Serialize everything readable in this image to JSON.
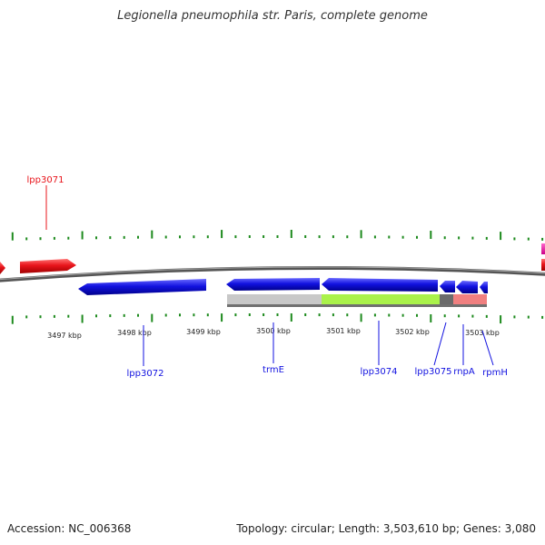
{
  "title": "Legionella pneumophila str. Paris, complete genome",
  "footer": {
    "accession": "Accession: NC_006368",
    "summary": "Topology: circular; Length: 3,503,610 bp; Genes: 3,080"
  },
  "colors": {
    "red_gene": "#e8141b",
    "blue_gene": "#1212e0",
    "tick": "#1d8a1d",
    "backbone": "#777777"
  },
  "kbp_labels": [
    "3497 kbp",
    "3498 kbp",
    "3499 kbp",
    "3500 kbp",
    "3501 kbp",
    "3502 kbp",
    "3503 kbp"
  ],
  "gene_labels": {
    "lpp3071": "lpp3071",
    "lpp3072": "lpp3072",
    "trmE": "trmE",
    "lpp3074": "lpp3074",
    "lpp3075": "lpp3075",
    "rnpA": "rnpA",
    "rpmH": "rpmH"
  }
}
